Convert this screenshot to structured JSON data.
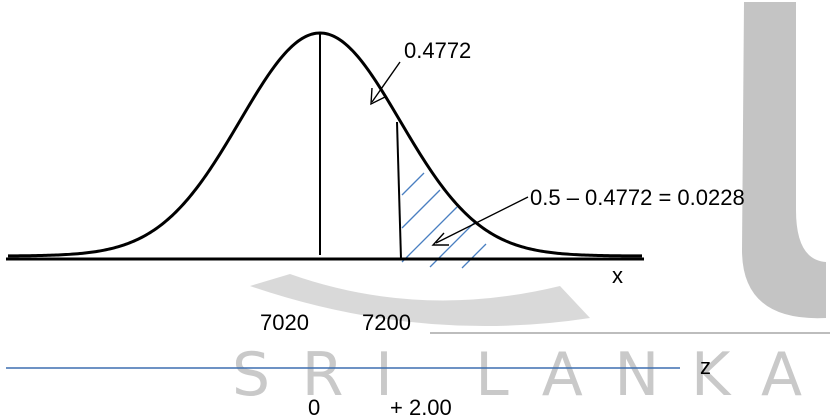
{
  "diagram": {
    "upper_area_label": "0.4772",
    "tail_area_label": "0.5 – 0.4772 = 0.0228",
    "x_axis_label": "x",
    "x_mean_label": "7020",
    "x_value_label": "7200",
    "z_axis_label": "z",
    "z_mean_label": "0",
    "z_value_label": "+ 2.00",
    "hatch_color": "#4a7fc1",
    "z_line_color": "#3d6fb0"
  },
  "watermark": {
    "text": "SRI LANKA",
    "color": "#c9c9c9"
  }
}
